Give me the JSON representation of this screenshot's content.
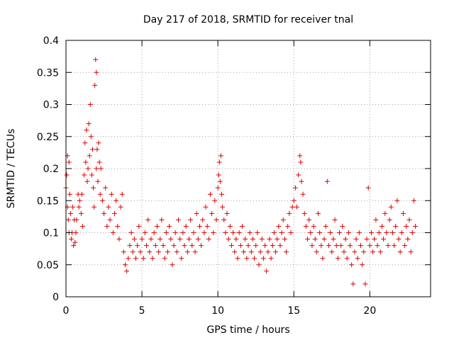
{
  "chart_data": {
    "type": "scatter",
    "title": "Day 217 of 2018, SRMTID for receiver tnal",
    "xlabel": "GPS time / hours",
    "ylabel": "SRMTID / TECUs",
    "xlim": [
      0,
      24
    ],
    "ylim": [
      0,
      0.4
    ],
    "xticks": [
      0,
      5,
      10,
      15,
      20
    ],
    "yticks": [
      0,
      0.05,
      0.1,
      0.15,
      0.2,
      0.25,
      0.3,
      0.35,
      0.4
    ],
    "xtick_labels": [
      "0",
      "5",
      "10",
      "15",
      "20"
    ],
    "ytick_labels": [
      "0",
      "0.05",
      "0.1",
      "0.15",
      "0.2",
      "0.25",
      "0.3",
      "0.35",
      "0.4"
    ],
    "grid": true,
    "marker": "+",
    "color": "#e00000",
    "series": [
      {
        "name": "SRMTID",
        "points": [
          [
            0.0,
            0.17
          ],
          [
            0.05,
            0.19
          ],
          [
            0.1,
            0.22
          ],
          [
            0.1,
            0.14
          ],
          [
            0.15,
            0.12
          ],
          [
            0.2,
            0.21
          ],
          [
            0.2,
            0.1
          ],
          [
            0.25,
            0.16
          ],
          [
            0.3,
            0.13
          ],
          [
            0.35,
            0.09
          ],
          [
            0.4,
            0.1
          ],
          [
            0.45,
            0.14
          ],
          [
            0.5,
            0.08
          ],
          [
            0.55,
            0.12
          ],
          [
            0.6,
            0.085
          ],
          [
            0.65,
            0.1
          ],
          [
            0.7,
            0.12
          ],
          [
            0.8,
            0.16
          ],
          [
            0.85,
            0.14
          ],
          [
            0.9,
            0.15
          ],
          [
            1.0,
            0.13
          ],
          [
            1.05,
            0.16
          ],
          [
            1.1,
            0.11
          ],
          [
            1.2,
            0.19
          ],
          [
            1.25,
            0.24
          ],
          [
            1.3,
            0.21
          ],
          [
            1.35,
            0.26
          ],
          [
            1.4,
            0.18
          ],
          [
            1.45,
            0.2
          ],
          [
            1.5,
            0.27
          ],
          [
            1.55,
            0.22
          ],
          [
            1.6,
            0.3
          ],
          [
            1.65,
            0.25
          ],
          [
            1.7,
            0.19
          ],
          [
            1.75,
            0.23
          ],
          [
            1.8,
            0.17
          ],
          [
            1.85,
            0.14
          ],
          [
            1.9,
            0.33
          ],
          [
            1.95,
            0.37
          ],
          [
            2.0,
            0.35
          ],
          [
            2.0,
            0.2
          ],
          [
            2.05,
            0.23
          ],
          [
            2.1,
            0.18
          ],
          [
            2.15,
            0.24
          ],
          [
            2.2,
            0.21
          ],
          [
            2.25,
            0.16
          ],
          [
            2.3,
            0.2
          ],
          [
            2.4,
            0.15
          ],
          [
            2.5,
            0.13
          ],
          [
            2.6,
            0.17
          ],
          [
            2.7,
            0.11
          ],
          [
            2.8,
            0.14
          ],
          [
            2.9,
            0.12
          ],
          [
            3.0,
            0.16
          ],
          [
            3.1,
            0.1
          ],
          [
            3.2,
            0.13
          ],
          [
            3.3,
            0.15
          ],
          [
            3.4,
            0.11
          ],
          [
            3.5,
            0.09
          ],
          [
            3.6,
            0.14
          ],
          [
            3.7,
            0.16
          ],
          [
            3.8,
            0.07
          ],
          [
            3.9,
            0.05
          ],
          [
            4.0,
            0.04
          ],
          [
            4.1,
            0.06
          ],
          [
            4.2,
            0.08
          ],
          [
            4.3,
            0.1
          ],
          [
            4.4,
            0.07
          ],
          [
            4.5,
            0.09
          ],
          [
            4.6,
            0.06
          ],
          [
            4.7,
            0.08
          ],
          [
            4.8,
            0.11
          ],
          [
            4.9,
            0.07
          ],
          [
            5.0,
            0.09
          ],
          [
            5.1,
            0.06
          ],
          [
            5.2,
            0.1
          ],
          [
            5.3,
            0.08
          ],
          [
            5.4,
            0.12
          ],
          [
            5.5,
            0.07
          ],
          [
            5.6,
            0.09
          ],
          [
            5.7,
            0.06
          ],
          [
            5.8,
            0.1
          ],
          [
            5.9,
            0.08
          ],
          [
            6.0,
            0.11
          ],
          [
            6.1,
            0.07
          ],
          [
            6.2,
            0.09
          ],
          [
            6.3,
            0.12
          ],
          [
            6.4,
            0.08
          ],
          [
            6.5,
            0.06
          ],
          [
            6.6,
            0.1
          ],
          [
            6.7,
            0.07
          ],
          [
            6.8,
            0.11
          ],
          [
            6.9,
            0.09
          ],
          [
            7.0,
            0.05
          ],
          [
            7.1,
            0.08
          ],
          [
            7.2,
            0.1
          ],
          [
            7.3,
            0.07
          ],
          [
            7.4,
            0.12
          ],
          [
            7.5,
            0.09
          ],
          [
            7.6,
            0.06
          ],
          [
            7.7,
            0.1
          ],
          [
            7.8,
            0.08
          ],
          [
            7.9,
            0.11
          ],
          [
            8.0,
            0.07
          ],
          [
            8.1,
            0.09
          ],
          [
            8.2,
            0.12
          ],
          [
            8.3,
            0.08
          ],
          [
            8.4,
            0.1
          ],
          [
            8.5,
            0.07
          ],
          [
            8.6,
            0.13
          ],
          [
            8.7,
            0.09
          ],
          [
            8.8,
            0.11
          ],
          [
            8.9,
            0.08
          ],
          [
            9.0,
            0.12
          ],
          [
            9.1,
            0.1
          ],
          [
            9.2,
            0.14
          ],
          [
            9.3,
            0.11
          ],
          [
            9.4,
            0.09
          ],
          [
            9.5,
            0.16
          ],
          [
            9.6,
            0.13
          ],
          [
            9.7,
            0.1
          ],
          [
            9.8,
            0.15
          ],
          [
            9.9,
            0.12
          ],
          [
            10.0,
            0.17
          ],
          [
            10.05,
            0.19
          ],
          [
            10.1,
            0.21
          ],
          [
            10.15,
            0.18
          ],
          [
            10.2,
            0.22
          ],
          [
            10.25,
            0.16
          ],
          [
            10.3,
            0.14
          ],
          [
            10.4,
            0.12
          ],
          [
            10.5,
            0.1
          ],
          [
            10.6,
            0.13
          ],
          [
            10.7,
            0.09
          ],
          [
            10.8,
            0.11
          ],
          [
            10.9,
            0.08
          ],
          [
            11.0,
            0.1
          ],
          [
            11.1,
            0.07
          ],
          [
            11.2,
            0.09
          ],
          [
            11.3,
            0.06
          ],
          [
            11.4,
            0.1
          ],
          [
            11.5,
            0.08
          ],
          [
            11.6,
            0.11
          ],
          [
            11.7,
            0.07
          ],
          [
            11.8,
            0.09
          ],
          [
            11.9,
            0.06
          ],
          [
            12.0,
            0.08
          ],
          [
            12.1,
            0.1
          ],
          [
            12.2,
            0.07
          ],
          [
            12.3,
            0.09
          ],
          [
            12.4,
            0.06
          ],
          [
            12.5,
            0.08
          ],
          [
            12.6,
            0.1
          ],
          [
            12.7,
            0.05
          ],
          [
            12.8,
            0.07
          ],
          [
            12.9,
            0.09
          ],
          [
            13.0,
            0.06
          ],
          [
            13.1,
            0.08
          ],
          [
            13.2,
            0.04
          ],
          [
            13.3,
            0.07
          ],
          [
            13.4,
            0.09
          ],
          [
            13.5,
            0.06
          ],
          [
            13.6,
            0.08
          ],
          [
            13.7,
            0.1
          ],
          [
            13.8,
            0.07
          ],
          [
            13.9,
            0.09
          ],
          [
            14.0,
            0.11
          ],
          [
            14.1,
            0.08
          ],
          [
            14.2,
            0.1
          ],
          [
            14.3,
            0.12
          ],
          [
            14.4,
            0.09
          ],
          [
            14.5,
            0.07
          ],
          [
            14.6,
            0.11
          ],
          [
            14.7,
            0.13
          ],
          [
            14.8,
            0.1
          ],
          [
            14.9,
            0.14
          ],
          [
            15.0,
            0.15
          ],
          [
            15.1,
            0.17
          ],
          [
            15.2,
            0.14
          ],
          [
            15.3,
            0.19
          ],
          [
            15.4,
            0.22
          ],
          [
            15.45,
            0.21
          ],
          [
            15.5,
            0.18
          ],
          [
            15.6,
            0.16
          ],
          [
            15.7,
            0.13
          ],
          [
            15.8,
            0.11
          ],
          [
            15.9,
            0.09
          ],
          [
            16.0,
            0.12
          ],
          [
            16.1,
            0.1
          ],
          [
            16.2,
            0.08
          ],
          [
            16.3,
            0.11
          ],
          [
            16.4,
            0.09
          ],
          [
            16.5,
            0.07
          ],
          [
            16.6,
            0.13
          ],
          [
            16.7,
            0.1
          ],
          [
            16.8,
            0.08
          ],
          [
            16.9,
            0.06
          ],
          [
            17.0,
            0.09
          ],
          [
            17.1,
            0.11
          ],
          [
            17.2,
            0.18
          ],
          [
            17.3,
            0.08
          ],
          [
            17.4,
            0.1
          ],
          [
            17.5,
            0.07
          ],
          [
            17.6,
            0.09
          ],
          [
            17.7,
            0.12
          ],
          [
            17.8,
            0.08
          ],
          [
            17.9,
            0.06
          ],
          [
            18.0,
            0.1
          ],
          [
            18.1,
            0.08
          ],
          [
            18.2,
            0.11
          ],
          [
            18.3,
            0.07
          ],
          [
            18.4,
            0.09
          ],
          [
            18.5,
            0.06
          ],
          [
            18.6,
            0.1
          ],
          [
            18.7,
            0.08
          ],
          [
            18.8,
            0.05
          ],
          [
            18.9,
            0.02
          ],
          [
            19.0,
            0.07
          ],
          [
            19.1,
            0.09
          ],
          [
            19.2,
            0.06
          ],
          [
            19.3,
            0.1
          ],
          [
            19.4,
            0.08
          ],
          [
            19.5,
            0.05
          ],
          [
            19.6,
            0.07
          ],
          [
            19.7,
            0.02
          ],
          [
            19.8,
            0.09
          ],
          [
            19.9,
            0.17
          ],
          [
            20.0,
            0.08
          ],
          [
            20.1,
            0.1
          ],
          [
            20.2,
            0.07
          ],
          [
            20.3,
            0.09
          ],
          [
            20.4,
            0.12
          ],
          [
            20.5,
            0.08
          ],
          [
            20.6,
            0.1
          ],
          [
            20.7,
            0.07
          ],
          [
            20.8,
            0.11
          ],
          [
            20.9,
            0.09
          ],
          [
            21.0,
            0.13
          ],
          [
            21.1,
            0.1
          ],
          [
            21.2,
            0.08
          ],
          [
            21.3,
            0.12
          ],
          [
            21.4,
            0.14
          ],
          [
            21.5,
            0.1
          ],
          [
            21.6,
            0.08
          ],
          [
            21.7,
            0.11
          ],
          [
            21.8,
            0.15
          ],
          [
            21.9,
            0.09
          ],
          [
            22.0,
            0.07
          ],
          [
            22.1,
            0.1
          ],
          [
            22.2,
            0.13
          ],
          [
            22.3,
            0.08
          ],
          [
            22.4,
            0.11
          ],
          [
            22.5,
            0.09
          ],
          [
            22.6,
            0.12
          ],
          [
            22.7,
            0.07
          ],
          [
            22.8,
            0.1
          ],
          [
            22.9,
            0.15
          ],
          [
            23.0,
            0.11
          ]
        ]
      }
    ]
  }
}
